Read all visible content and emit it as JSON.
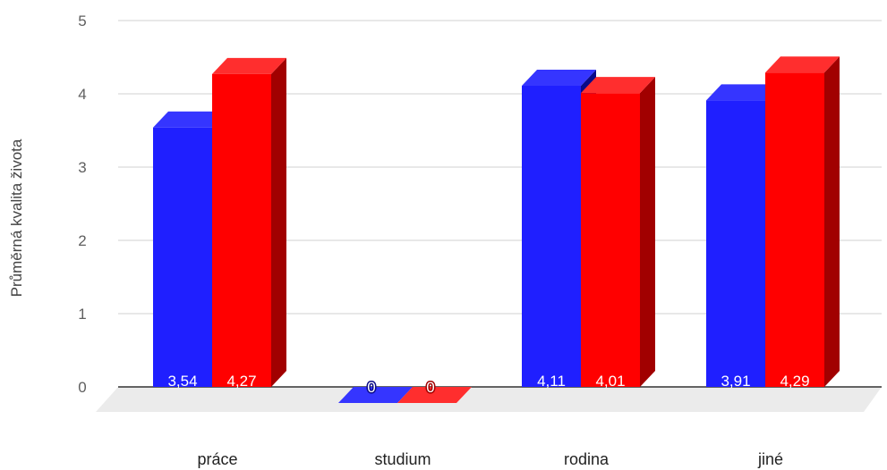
{
  "chart_data": {
    "type": "bar",
    "style": "3d-clustered",
    "ylabel": "Průměrná kvalita života",
    "xlabel": "",
    "ylim": [
      0,
      5
    ],
    "yticks": [
      "0",
      "1",
      "2",
      "3",
      "4",
      "5"
    ],
    "grid": true,
    "legend": "none",
    "categories": [
      "práce",
      "studium",
      "rodina",
      "jiné"
    ],
    "series": [
      {
        "values": [
          3.54,
          0,
          4.11,
          3.91
        ],
        "labels": [
          "3,54",
          "0",
          "4,11",
          "3,91"
        ],
        "color": "#1f1fff",
        "top_color": "#3535ff",
        "side_color": "#0a0a88"
      },
      {
        "values": [
          4.27,
          0,
          4.01,
          4.29
        ],
        "labels": [
          "4,27",
          "0",
          "4,01",
          "4,29"
        ],
        "color": "#ff0000",
        "top_color": "#ff2e2e",
        "side_color": "#a10000"
      }
    ],
    "floor_color": "#ebebeb",
    "grid_color": "#d0d0d0",
    "baseline_color": "#333333"
  }
}
